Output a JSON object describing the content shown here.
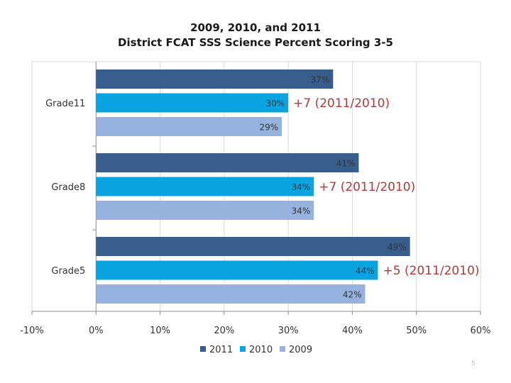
{
  "chart_data": {
    "type": "bar",
    "orientation": "horizontal",
    "title_lines": [
      "2009, 2010, and 2011",
      "District FCAT SSS Science Percent Scoring 3-5"
    ],
    "categories": [
      "Grade11",
      "Grade8",
      "Grade5"
    ],
    "series": [
      {
        "name": "2011",
        "color": "#375d8c",
        "values": [
          37,
          41,
          49
        ],
        "labels": [
          "37%",
          "41%",
          "49%"
        ]
      },
      {
        "name": "2010",
        "color": "#0aa5e0",
        "values": [
          30,
          34,
          44
        ],
        "labels": [
          "30%",
          "34%",
          "44%"
        ]
      },
      {
        "name": "2009",
        "color": "#95b3de",
        "values": [
          29,
          34,
          42
        ],
        "labels": [
          "29%",
          "34%",
          "42%"
        ]
      }
    ],
    "annotations": [
      "+7 (2011/2010)",
      "+7 (2011/2010)",
      "+5 (2011/2010)"
    ],
    "annotation_color": "#b03a3a",
    "xlim": [
      -10,
      60
    ],
    "xticks": [
      -10,
      0,
      10,
      20,
      30,
      40,
      50,
      60
    ],
    "xtick_labels": [
      "-10%",
      "0%",
      "10%",
      "20%",
      "30%",
      "40%",
      "50%",
      "60%"
    ],
    "legend_position": "bottom",
    "grid": true
  },
  "page_number": "5"
}
